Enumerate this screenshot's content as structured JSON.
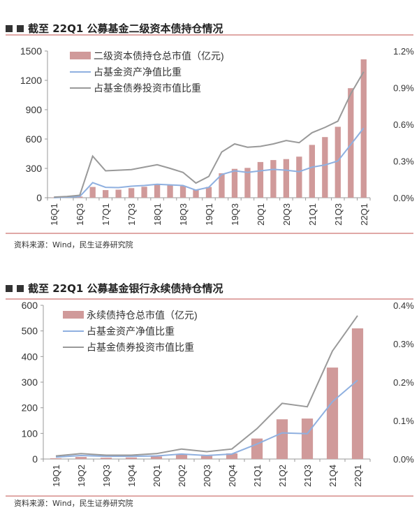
{
  "chart_data": [
    {
      "type": "bar",
      "title": "截至 22Q1 公募基金二级资本债持仓情况",
      "source": "资料来源：Wind，民生证券研究院",
      "categories": [
        "16Q1",
        "16Q2",
        "16Q3",
        "16Q4",
        "17Q1",
        "17Q2",
        "17Q3",
        "17Q4",
        "18Q1",
        "18Q2",
        "18Q3",
        "18Q4",
        "19Q1",
        "19Q2",
        "19Q3",
        "19Q4",
        "20Q1",
        "20Q2",
        "20Q3",
        "20Q4",
        "21Q1",
        "21Q2",
        "21Q3",
        "21Q4",
        "22Q1"
      ],
      "tick_labels": [
        "16Q1",
        "16Q3",
        "17Q1",
        "17Q3",
        "18Q1",
        "18Q3",
        "19Q1",
        "19Q3",
        "20Q1",
        "20Q3",
        "21Q1",
        "21Q3",
        "22Q1"
      ],
      "ylim": [
        0,
        1500
      ],
      "yticks": [
        "0",
        "300",
        "600",
        "900",
        "1200",
        "1500"
      ],
      "y2lim": [
        0,
        1.2
      ],
      "y2ticks": [
        "0.0%",
        "0.3%",
        "0.6%",
        "0.9%",
        "1.2%"
      ],
      "legend_position": "top-left",
      "series": [
        {
          "name": "二级资本债持仓总市值（亿元)",
          "kind": "bar",
          "axis": "left",
          "color": "#d09a9a",
          "values": [
            3,
            8,
            12,
            110,
            78,
            82,
            98,
            112,
            135,
            128,
            120,
            80,
            110,
            250,
            295,
            305,
            365,
            385,
            395,
            420,
            540,
            620,
            725,
            1120,
            1415
          ]
        },
        {
          "name": "占基金资产净值比重",
          "kind": "line",
          "axis": "right",
          "color": "#8fb0e0",
          "values": [
            0.0,
            0.005,
            0.01,
            0.123,
            0.085,
            0.083,
            0.094,
            0.1,
            0.11,
            0.105,
            0.1,
            0.062,
            0.085,
            0.19,
            0.22,
            0.207,
            0.22,
            0.232,
            0.225,
            0.213,
            0.25,
            0.268,
            0.3,
            0.434,
            0.57
          ]
        },
        {
          "name": "占基金债券投资市值比重",
          "kind": "line",
          "axis": "right",
          "color": "#999999",
          "values": [
            0.005,
            0.01,
            0.02,
            0.34,
            0.22,
            0.225,
            0.23,
            0.25,
            0.27,
            0.24,
            0.207,
            0.12,
            0.174,
            0.374,
            0.44,
            0.413,
            0.42,
            0.44,
            0.468,
            0.45,
            0.532,
            0.575,
            0.626,
            0.85,
            1.03
          ]
        }
      ]
    },
    {
      "type": "bar",
      "title": "截至 22Q1 公募基金银行永续债持仓情况",
      "source": "资料来源：Wind，民生证券研究院",
      "categories": [
        "19Q1",
        "19Q2",
        "19Q3",
        "19Q4",
        "20Q1",
        "20Q2",
        "20Q3",
        "20Q4",
        "21Q1",
        "21Q2",
        "21Q3",
        "21Q4",
        "22Q1"
      ],
      "tick_labels": [
        "19Q1",
        "19Q2",
        "19Q3",
        "19Q4",
        "20Q1",
        "20Q2",
        "20Q3",
        "20Q4",
        "21Q1",
        "21Q2",
        "21Q3",
        "21Q4",
        "22Q1"
      ],
      "ylim": [
        0,
        600
      ],
      "yticks": [
        "0",
        "100",
        "200",
        "300",
        "400",
        "500",
        "600"
      ],
      "y2lim": [
        0,
        0.4
      ],
      "y2ticks": [
        "0.0%",
        "0.1%",
        "0.2%",
        "0.3%",
        "0.4%"
      ],
      "legend_position": "top-left",
      "series": [
        {
          "name": "永续债持仓总市值（亿元)",
          "kind": "bar",
          "axis": "left",
          "color": "#d09a9a",
          "values": [
            3,
            8,
            5,
            6,
            10,
            20,
            12,
            22,
            80,
            155,
            158,
            357,
            510
          ]
        },
        {
          "name": "占基金资产净值比重",
          "kind": "line",
          "axis": "right",
          "color": "#8fb0e0",
          "values": [
            0.005,
            0.009,
            0.007,
            0.007,
            0.008,
            0.013,
            0.009,
            0.013,
            0.039,
            0.068,
            0.066,
            0.149,
            0.205
          ]
        },
        {
          "name": "占基金债券投资市值比重",
          "kind": "line",
          "axis": "right",
          "color": "#999999",
          "values": [
            0.008,
            0.014,
            0.01,
            0.01,
            0.014,
            0.026,
            0.019,
            0.026,
            0.079,
            0.145,
            0.136,
            0.281,
            0.373
          ]
        }
      ]
    }
  ]
}
